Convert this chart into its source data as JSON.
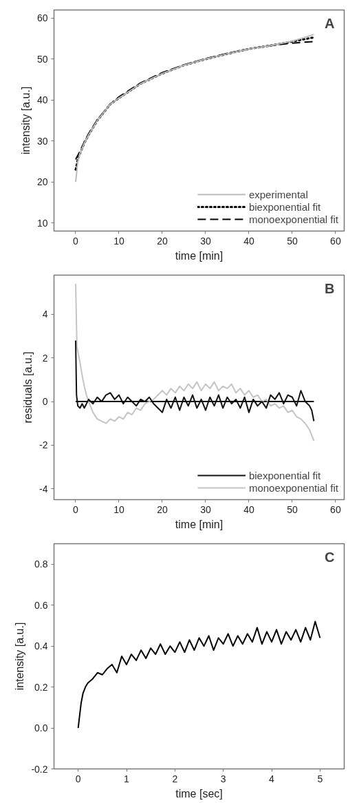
{
  "chart_data": [
    {
      "type": "line",
      "annotations": [
        "A"
      ],
      "xlabel": "time [min]",
      "ylabel": "intensity [a.u.]",
      "xlim": [
        -5,
        62
      ],
      "ylim": [
        8,
        62
      ],
      "xticks": [
        0,
        10,
        20,
        30,
        40,
        50,
        60
      ],
      "yticks": [
        10,
        20,
        30,
        40,
        50,
        60
      ],
      "grid": false,
      "legend": "bottom right",
      "series": [
        {
          "name": "experimental",
          "color": "#bbbbbb",
          "line_style": "solid",
          "x": [
            0,
            0.5,
            1,
            2,
            3,
            5,
            8,
            10,
            15,
            20,
            25,
            30,
            35,
            40,
            45,
            50,
            55
          ],
          "values": [
            20,
            25,
            27,
            29.5,
            31.5,
            35,
            39,
            40.5,
            44,
            46.5,
            48.5,
            50,
            51.3,
            52.5,
            53.3,
            54.4,
            56
          ]
        },
        {
          "name": "biexponential fit",
          "color": "#000000",
          "line_style": "dotted",
          "x": [
            0,
            0.5,
            1,
            2,
            3,
            5,
            8,
            10,
            15,
            20,
            25,
            30,
            35,
            40,
            45,
            50,
            55
          ],
          "values": [
            23,
            25.5,
            27,
            29.5,
            31.5,
            35,
            39,
            40.5,
            44,
            46.5,
            48.5,
            50,
            51.3,
            52.5,
            53.3,
            54.3,
            55.3
          ]
        },
        {
          "name": "monoexponential fit",
          "color": "#000000",
          "line_style": "dashed",
          "x": [
            0,
            1,
            2,
            3,
            5,
            8,
            10,
            15,
            20,
            25,
            30,
            35,
            40,
            45,
            50,
            55
          ],
          "values": [
            25.5,
            27.5,
            29.8,
            31.8,
            35.2,
            39,
            40.8,
            44.2,
            46.7,
            48.6,
            50.1,
            51.4,
            52.5,
            53.3,
            53.9,
            54.3
          ]
        }
      ]
    },
    {
      "type": "line",
      "annotations": [
        "B"
      ],
      "xlabel": "time [min]",
      "ylabel": "residuals [a.u.]",
      "xlim": [
        -5,
        62
      ],
      "ylim": [
        -4.5,
        5.8
      ],
      "xticks": [
        0,
        10,
        20,
        30,
        40,
        50,
        60
      ],
      "yticks": [
        {
          "value": -4,
          "label": "-4"
        },
        {
          "value": -2,
          "label": "-2"
        },
        0,
        2,
        4
      ],
      "grid": false,
      "legend": "bottom right",
      "ref_lines": [
        {
          "axis": "y",
          "value": 0,
          "color": "#000000"
        }
      ],
      "series": [
        {
          "name": "biexponential fit",
          "color": "#111111",
          "line_style": "solid",
          "x": [
            0,
            0.2,
            0.5,
            1,
            1.5,
            2,
            3,
            4,
            5,
            6,
            7,
            8,
            9,
            10,
            11,
            12,
            13,
            14,
            15,
            16,
            17,
            18,
            19,
            20,
            21,
            22,
            23,
            24,
            25,
            26,
            27,
            28,
            29,
            30,
            31,
            32,
            33,
            34,
            35,
            36,
            37,
            38,
            39,
            40,
            41,
            42,
            43,
            44,
            45,
            46,
            47,
            48,
            49,
            50,
            51,
            52,
            53,
            54,
            54.5,
            55
          ],
          "values": [
            2.8,
            0.3,
            -0.2,
            -0.3,
            -0.1,
            -0.3,
            0.1,
            -0.1,
            0.2,
            0.0,
            0.3,
            0.4,
            0.1,
            0.3,
            -0.1,
            0.2,
            0.0,
            -0.2,
            0.1,
            0.0,
            0.2,
            -0.1,
            -0.3,
            -0.5,
            0.1,
            -0.3,
            0.2,
            -0.4,
            0.2,
            -0.2,
            0.3,
            -0.3,
            0.1,
            -0.4,
            0.2,
            -0.2,
            0.3,
            -0.3,
            0.2,
            -0.1,
            0.1,
            -0.3,
            0.2,
            -0.5,
            0.1,
            -0.2,
            0.0,
            -0.3,
            0.3,
            0.1,
            0.4,
            -0.1,
            0.3,
            0.2,
            -0.2,
            0.5,
            0.0,
            -0.2,
            -0.4,
            -0.9
          ]
        },
        {
          "name": "monoexponential fit",
          "color": "#c4c4c4",
          "line_style": "solid",
          "x": [
            0,
            0.3,
            0.6,
            1,
            1.5,
            2,
            2.5,
            3,
            4,
            5,
            6,
            7,
            8,
            9,
            10,
            11,
            12,
            13,
            14,
            15,
            16,
            17,
            18,
            19,
            20,
            21,
            22,
            23,
            24,
            25,
            26,
            27,
            28,
            29,
            30,
            31,
            32,
            33,
            34,
            35,
            36,
            37,
            38,
            39,
            40,
            41,
            42,
            43,
            44,
            45,
            46,
            47,
            48,
            49,
            50,
            51,
            52,
            53,
            54,
            55
          ],
          "values": [
            5.4,
            2.5,
            2.2,
            1.8,
            1.2,
            0.7,
            0.3,
            0.0,
            -0.5,
            -0.8,
            -0.9,
            -1.0,
            -0.8,
            -0.9,
            -0.7,
            -0.8,
            -0.5,
            -0.6,
            -0.3,
            -0.4,
            -0.1,
            0.0,
            0.1,
            0.3,
            0.5,
            0.3,
            0.6,
            0.4,
            0.7,
            0.5,
            0.8,
            0.6,
            0.9,
            0.5,
            0.8,
            0.6,
            0.9,
            0.5,
            0.7,
            0.6,
            0.8,
            0.4,
            0.6,
            0.3,
            0.5,
            0.2,
            0.3,
            0.0,
            0.1,
            -0.2,
            -0.1,
            -0.3,
            -0.2,
            -0.5,
            -0.4,
            -0.7,
            -0.8,
            -1.0,
            -1.3,
            -1.8
          ]
        }
      ]
    },
    {
      "type": "line",
      "annotations": [
        "C"
      ],
      "xlabel": "time [sec]",
      "ylabel": "intensity [a.u.]",
      "xlim": [
        -0.5,
        5.5
      ],
      "ylim": [
        -0.2,
        0.9
      ],
      "xticks": [
        0,
        1,
        2,
        3,
        4,
        5
      ],
      "yticks": [
        {
          "value": -0.2,
          "label": "-0.2"
        },
        {
          "value": 0,
          "label": "0.0"
        },
        0.2,
        0.4,
        0.6,
        0.8
      ],
      "grid": false,
      "series": [
        {
          "color": "#000000",
          "line_style": "solid",
          "x": [
            0,
            0.03,
            0.06,
            0.1,
            0.15,
            0.2,
            0.3,
            0.4,
            0.5,
            0.6,
            0.7,
            0.8,
            0.9,
            1.0,
            1.1,
            1.2,
            1.3,
            1.4,
            1.5,
            1.6,
            1.7,
            1.8,
            1.9,
            2.0,
            2.1,
            2.2,
            2.3,
            2.4,
            2.5,
            2.6,
            2.7,
            2.8,
            2.9,
            3.0,
            3.1,
            3.2,
            3.3,
            3.4,
            3.5,
            3.6,
            3.7,
            3.8,
            3.9,
            4.0,
            4.1,
            4.2,
            4.3,
            4.4,
            4.5,
            4.6,
            4.7,
            4.8,
            4.9,
            5.0
          ],
          "values": [
            0.0,
            0.06,
            0.12,
            0.17,
            0.2,
            0.22,
            0.24,
            0.27,
            0.26,
            0.29,
            0.31,
            0.27,
            0.35,
            0.31,
            0.36,
            0.33,
            0.38,
            0.34,
            0.39,
            0.36,
            0.41,
            0.36,
            0.4,
            0.37,
            0.42,
            0.37,
            0.43,
            0.38,
            0.44,
            0.4,
            0.45,
            0.38,
            0.44,
            0.41,
            0.46,
            0.4,
            0.45,
            0.41,
            0.46,
            0.42,
            0.49,
            0.41,
            0.47,
            0.42,
            0.48,
            0.41,
            0.47,
            0.43,
            0.48,
            0.42,
            0.49,
            0.43,
            0.52,
            0.44
          ]
        }
      ]
    }
  ]
}
